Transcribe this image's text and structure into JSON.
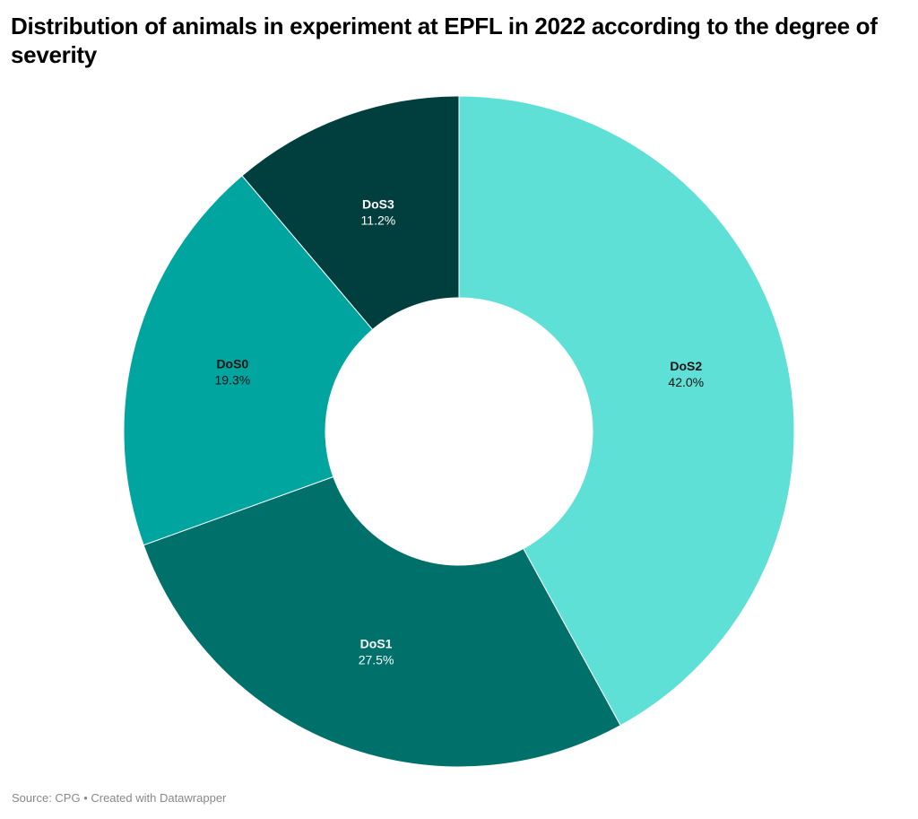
{
  "chart_data": {
    "type": "pie",
    "variant": "donut",
    "title": "Distribution of animals in experiment at EPFL in 2022 according to the degree of severity",
    "slices": [
      {
        "label": "DoS2",
        "value": 42.0,
        "display": "42.0%",
        "color": "#5fe0d6",
        "text_color": "#111111"
      },
      {
        "label": "DoS1",
        "value": 27.5,
        "display": "27.5%",
        "color": "#00706a",
        "text_color": "#ffffff"
      },
      {
        "label": "DoS0",
        "value": 19.3,
        "display": "19.3%",
        "color": "#00a59f",
        "text_color": "#111111"
      },
      {
        "label": "DoS3",
        "value": 11.2,
        "display": "11.2%",
        "color": "#003f3d",
        "text_color": "#ffffff"
      }
    ],
    "start_angle": "top",
    "direction": "clockwise",
    "unit": "%"
  },
  "footer": {
    "source": "Source: CPG • Created with Datawrapper"
  }
}
